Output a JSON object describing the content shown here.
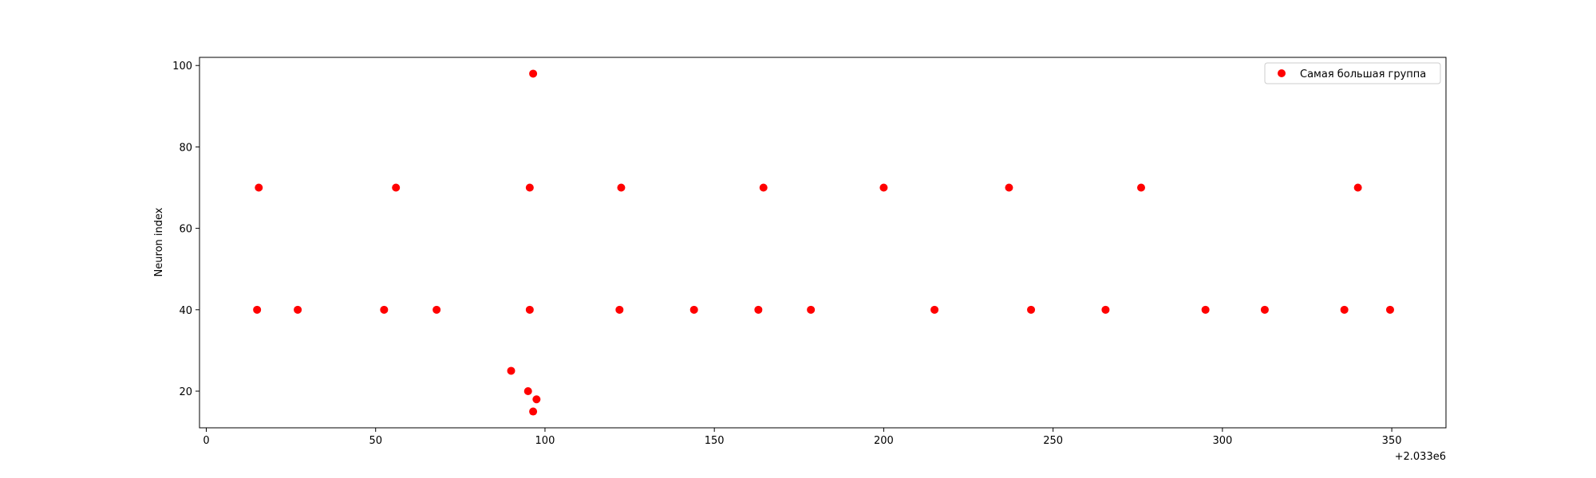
{
  "chart_data": {
    "type": "scatter",
    "title": "",
    "xlabel": "",
    "ylabel": "Neuron index",
    "x_offset_label": "+2.033e6",
    "xlim": [
      -2,
      366
    ],
    "ylim": [
      11,
      102
    ],
    "xticks": [
      0,
      50,
      100,
      150,
      200,
      250,
      300,
      350
    ],
    "yticks": [
      20,
      40,
      60,
      80,
      100
    ],
    "grid": false,
    "legend_position": "top-right",
    "series": [
      {
        "name": "Самая большая группа",
        "color": "#ff0000",
        "points": [
          {
            "x": 15,
            "y": 40
          },
          {
            "x": 15.5,
            "y": 70
          },
          {
            "x": 27,
            "y": 40
          },
          {
            "x": 52.5,
            "y": 40
          },
          {
            "x": 56,
            "y": 70
          },
          {
            "x": 68,
            "y": 40
          },
          {
            "x": 90,
            "y": 25
          },
          {
            "x": 95,
            "y": 20
          },
          {
            "x": 95.5,
            "y": 40
          },
          {
            "x": 95.5,
            "y": 70
          },
          {
            "x": 96.5,
            "y": 98
          },
          {
            "x": 96.5,
            "y": 15
          },
          {
            "x": 97.5,
            "y": 18
          },
          {
            "x": 122,
            "y": 40
          },
          {
            "x": 122.5,
            "y": 70
          },
          {
            "x": 144,
            "y": 40
          },
          {
            "x": 163,
            "y": 40
          },
          {
            "x": 164.5,
            "y": 70
          },
          {
            "x": 178.5,
            "y": 40
          },
          {
            "x": 200,
            "y": 70
          },
          {
            "x": 215,
            "y": 40
          },
          {
            "x": 237,
            "y": 70
          },
          {
            "x": 243.5,
            "y": 40
          },
          {
            "x": 265.5,
            "y": 40
          },
          {
            "x": 276,
            "y": 70
          },
          {
            "x": 295,
            "y": 40
          },
          {
            "x": 312.5,
            "y": 40
          },
          {
            "x": 336,
            "y": 40
          },
          {
            "x": 340,
            "y": 70
          },
          {
            "x": 349.5,
            "y": 40
          }
        ]
      }
    ]
  }
}
